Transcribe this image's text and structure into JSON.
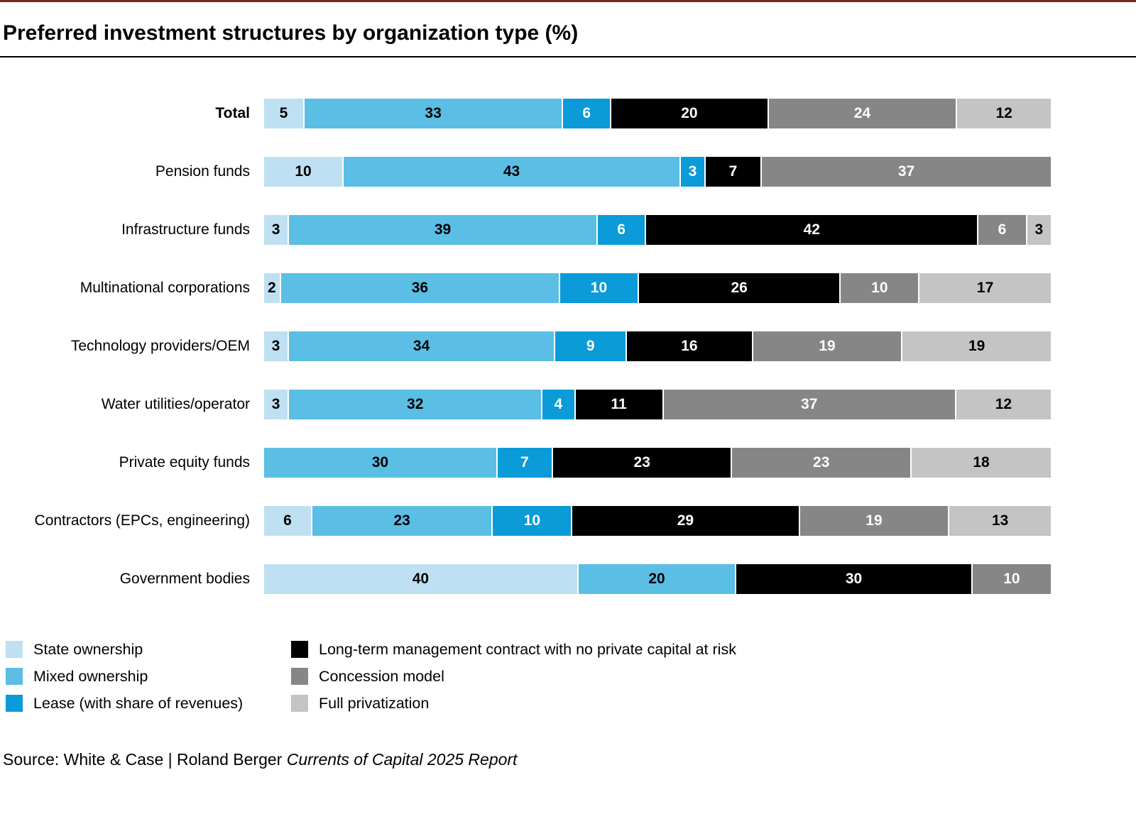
{
  "title": "Preferred investment structures by organization type (%)",
  "accent_line_color": "#7a241c",
  "chart_data": {
    "type": "bar",
    "subtype": "horizontal-stacked",
    "unit": "%",
    "xlim": [
      0,
      100
    ],
    "grid": false,
    "value_labels": true,
    "title": "Preferred investment structures by organization type (%)",
    "categories": [
      "Total",
      "Pension funds",
      "Infrastructure funds",
      "Multinational corporations",
      "Technology providers/OEM",
      "Water utilities/operator",
      "Private equity funds",
      "Contractors (EPCs, engineering)",
      "Government bodies"
    ],
    "emphasized_category": "Total",
    "series": [
      {
        "name": "State ownership",
        "color": "#bfe0f2",
        "text_color": "#000000",
        "values": [
          5,
          10,
          3,
          2,
          3,
          3,
          0,
          6,
          40
        ]
      },
      {
        "name": "Mixed ownership",
        "color": "#5abee5",
        "text_color": "#000000",
        "values": [
          33,
          43,
          39,
          36,
          34,
          32,
          30,
          23,
          20
        ]
      },
      {
        "name": "Lease (with share of revenues)",
        "color": "#0a9bd8",
        "text_color": "#ffffff",
        "values": [
          6,
          3,
          6,
          10,
          9,
          4,
          7,
          10,
          0
        ]
      },
      {
        "name": "Long-term management contract with no private capital at risk",
        "color": "#000000",
        "text_color": "#ffffff",
        "values": [
          20,
          7,
          42,
          26,
          16,
          11,
          23,
          29,
          30
        ]
      },
      {
        "name": "Concession model",
        "color": "#868686",
        "text_color": "#ffffff",
        "values": [
          24,
          37,
          6,
          10,
          19,
          37,
          23,
          19,
          10
        ]
      },
      {
        "name": "Full privatization",
        "color": "#c4c4c4",
        "text_color": "#000000",
        "values": [
          12,
          0,
          3,
          17,
          19,
          12,
          18,
          13,
          0
        ]
      }
    ]
  },
  "legend": {
    "columns": [
      [
        0,
        1,
        2
      ],
      [
        3,
        4,
        5
      ]
    ]
  },
  "source": {
    "prefix": "Source: White & Case | Roland Berger ",
    "report": "Currents of Capital 2025 Report"
  }
}
